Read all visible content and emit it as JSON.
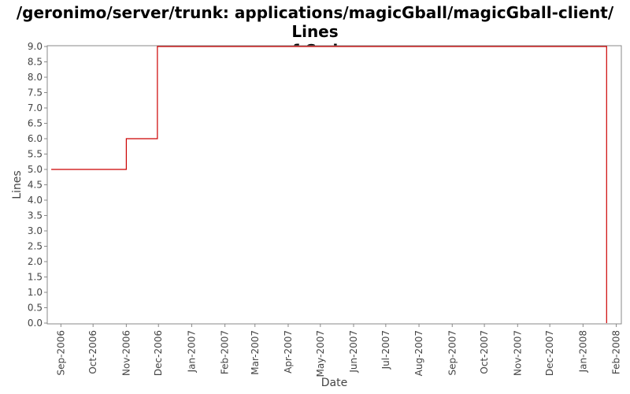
{
  "chart_data": {
    "type": "line",
    "step": true,
    "title_line1": "/geronimo/server/trunk: applications/magicGball/magicGball-client/ Lines",
    "title_line2": "of Code",
    "xlabel": "Date",
    "ylabel": "Lines",
    "ylim": [
      0,
      9.0
    ],
    "xlim": [
      "2006-08-20",
      "2008-02-05"
    ],
    "y_ticks": [
      "0.0",
      "0.5",
      "1.0",
      "1.5",
      "2.0",
      "2.5",
      "3.0",
      "3.5",
      "4.0",
      "4.5",
      "5.0",
      "5.5",
      "6.0",
      "6.5",
      "7.0",
      "7.5",
      "8.0",
      "8.5",
      "9.0"
    ],
    "x_ticks": [
      {
        "label": "Sep-2006",
        "date": "2006-09-01"
      },
      {
        "label": "Oct-2006",
        "date": "2006-10-01"
      },
      {
        "label": "Nov-2006",
        "date": "2006-11-01"
      },
      {
        "label": "Dec-2006",
        "date": "2006-12-01"
      },
      {
        "label": "Jan-2007",
        "date": "2007-01-01"
      },
      {
        "label": "Feb-2007",
        "date": "2007-02-01"
      },
      {
        "label": "Mar-2007",
        "date": "2007-03-01"
      },
      {
        "label": "Apr-2007",
        "date": "2007-04-01"
      },
      {
        "label": "May-2007",
        "date": "2007-05-01"
      },
      {
        "label": "Jun-2007",
        "date": "2007-06-01"
      },
      {
        "label": "Jul-2007",
        "date": "2007-07-01"
      },
      {
        "label": "Aug-2007",
        "date": "2007-08-01"
      },
      {
        "label": "Sep-2007",
        "date": "2007-09-01"
      },
      {
        "label": "Oct-2007",
        "date": "2007-10-01"
      },
      {
        "label": "Nov-2007",
        "date": "2007-11-01"
      },
      {
        "label": "Dec-2007",
        "date": "2007-12-01"
      },
      {
        "label": "Jan-2008",
        "date": "2008-01-01"
      },
      {
        "label": "Feb-2008",
        "date": "2008-02-01"
      }
    ],
    "grid": false,
    "series": [
      {
        "color": "#cc0000",
        "points": [
          {
            "date": "2006-08-23",
            "value": 5
          },
          {
            "date": "2006-11-01",
            "value": 6
          },
          {
            "date": "2006-11-30",
            "value": 9
          },
          {
            "date": "2008-01-23",
            "value": 0
          }
        ]
      }
    ]
  }
}
